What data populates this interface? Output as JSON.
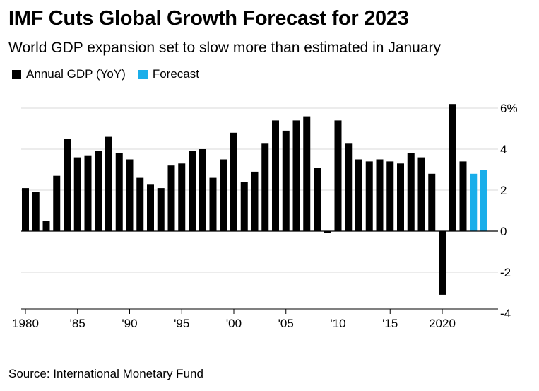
{
  "title": "IMF Cuts Global Growth Forecast for 2023",
  "subtitle": "World GDP expansion set to slow more than estimated in January",
  "source": "Source: International Monetary Fund",
  "legend": [
    {
      "label": "Annual GDP (YoY)",
      "color": "#000000"
    },
    {
      "label": "Forecast",
      "color": "#1aaeea"
    }
  ],
  "chart_data": {
    "type": "bar",
    "legend_position": "top-left",
    "grid": true,
    "ylim": [
      -4,
      6
    ],
    "y_ticks": [
      {
        "value": 6,
        "label": "6%"
      },
      {
        "value": 4,
        "label": "4"
      },
      {
        "value": 2,
        "label": "2"
      },
      {
        "value": 0,
        "label": "0"
      },
      {
        "value": -2,
        "label": "-2"
      },
      {
        "value": -4,
        "label": "-4"
      }
    ],
    "x_ticks": [
      {
        "year": 1980,
        "label": "1980"
      },
      {
        "year": 1985,
        "label": "'85"
      },
      {
        "year": 1990,
        "label": "'90"
      },
      {
        "year": 1995,
        "label": "'95"
      },
      {
        "year": 2000,
        "label": "'00"
      },
      {
        "year": 2005,
        "label": "'05"
      },
      {
        "year": 2010,
        "label": "'10"
      },
      {
        "year": 2015,
        "label": "'15"
      },
      {
        "year": 2020,
        "label": "2020"
      }
    ],
    "series": [
      {
        "name": "Annual GDP (YoY)",
        "color": "#000000",
        "x": [
          1980,
          1981,
          1982,
          1983,
          1984,
          1985,
          1986,
          1987,
          1988,
          1989,
          1990,
          1991,
          1992,
          1993,
          1994,
          1995,
          1996,
          1997,
          1998,
          1999,
          2000,
          2001,
          2002,
          2003,
          2004,
          2005,
          2006,
          2007,
          2008,
          2009,
          2010,
          2011,
          2012,
          2013,
          2014,
          2015,
          2016,
          2017,
          2018,
          2019,
          2020,
          2021,
          2022
        ],
        "values": [
          2.1,
          1.9,
          0.5,
          2.7,
          4.5,
          3.6,
          3.7,
          3.9,
          4.6,
          3.8,
          3.5,
          2.6,
          2.3,
          2.1,
          3.2,
          3.3,
          3.9,
          4.0,
          2.6,
          3.5,
          4.8,
          2.4,
          2.9,
          4.3,
          5.4,
          4.9,
          5.4,
          5.6,
          3.1,
          -0.1,
          5.4,
          4.3,
          3.5,
          3.4,
          3.5,
          3.4,
          3.3,
          3.8,
          3.6,
          2.8,
          -3.1,
          6.2,
          3.4
        ]
      },
      {
        "name": "Forecast",
        "color": "#1aaeea",
        "x": [
          2023,
          2024
        ],
        "values": [
          2.8,
          3.0
        ]
      }
    ]
  }
}
